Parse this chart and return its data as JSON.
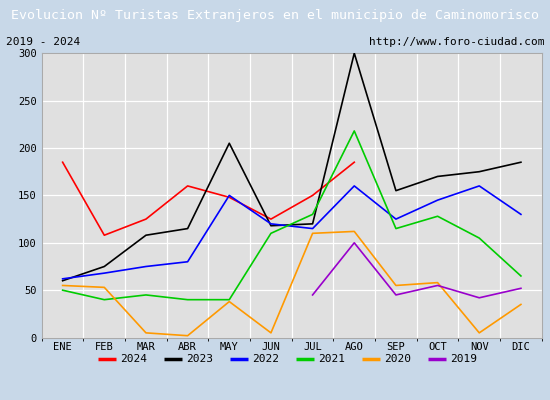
{
  "title": "Evolucion Nº Turistas Extranjeros en el municipio de Caminomorisco",
  "subtitle_left": "2019 - 2024",
  "subtitle_right": "http://www.foro-ciudad.com",
  "months": [
    "ENE",
    "FEB",
    "MAR",
    "ABR",
    "MAY",
    "JUN",
    "JUL",
    "AGO",
    "SEP",
    "OCT",
    "NOV",
    "DIC"
  ],
  "series": {
    "2024": {
      "color": "#ff0000",
      "values": [
        185,
        108,
        125,
        160,
        148,
        125,
        150,
        185,
        null,
        null,
        null,
        null
      ]
    },
    "2023": {
      "color": "#000000",
      "values": [
        60,
        75,
        108,
        115,
        205,
        118,
        120,
        300,
        155,
        170,
        175,
        185
      ]
    },
    "2022": {
      "color": "#0000ff",
      "values": [
        62,
        68,
        75,
        80,
        150,
        120,
        115,
        160,
        125,
        145,
        160,
        130
      ]
    },
    "2021": {
      "color": "#00cc00",
      "values": [
        50,
        40,
        45,
        40,
        40,
        110,
        130,
        218,
        115,
        128,
        105,
        65
      ]
    },
    "2020": {
      "color": "#ff9900",
      "values": [
        55,
        53,
        5,
        2,
        38,
        5,
        110,
        112,
        55,
        58,
        5,
        35
      ]
    },
    "2019": {
      "color": "#9900cc",
      "values": [
        null,
        null,
        null,
        null,
        null,
        null,
        45,
        100,
        45,
        55,
        42,
        52
      ]
    }
  },
  "ylim": [
    0,
    300
  ],
  "yticks": [
    0,
    50,
    100,
    150,
    200,
    250,
    300
  ],
  "title_bg_color": "#5b9bd5",
  "title_text_color": "#ffffff",
  "plot_bg_color": "#e0e0e0",
  "outer_bg_color": "#c8d8e8",
  "grid_color": "#ffffff",
  "legend_order": [
    "2024",
    "2023",
    "2022",
    "2021",
    "2020",
    "2019"
  ],
  "title_fontsize": 9.5,
  "subtitle_fontsize": 8,
  "tick_fontsize": 7.5,
  "legend_fontsize": 8
}
